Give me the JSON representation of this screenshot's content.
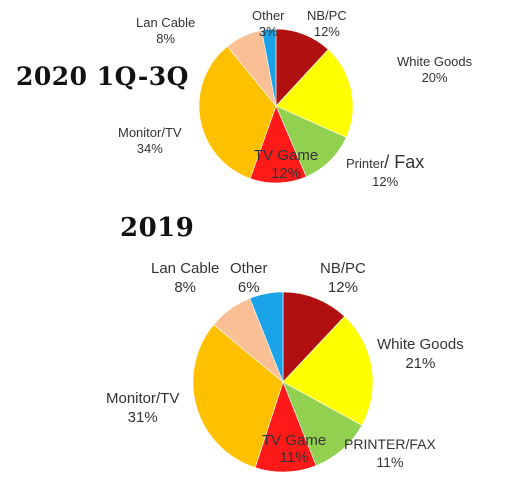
{
  "chart_data": [
    {
      "type": "pie",
      "title": "2020 1Q-3Q",
      "slices": [
        {
          "name": "NB/PC",
          "value": 12,
          "label": "12%",
          "color": "#b01010"
        },
        {
          "name": "White Goods",
          "value": 20,
          "label": "20%",
          "color": "#ffff00"
        },
        {
          "name": "Printer/Fax",
          "value": 12,
          "label": "12%",
          "color": "#92d050"
        },
        {
          "name": "TV Game",
          "value": 12,
          "label": "12%",
          "color": "#ff1a1a"
        },
        {
          "name": "Monitor/TV",
          "value": 34,
          "label": "34%",
          "color": "#ffc000"
        },
        {
          "name": "Lan Cable",
          "value": 8,
          "label": "8%",
          "color": "#fbbf95"
        },
        {
          "name": "Other",
          "value": 3,
          "label": "3%",
          "color": "#1aa3e8"
        }
      ]
    },
    {
      "type": "pie",
      "title": "2019",
      "slices": [
        {
          "name": "NB/PC",
          "value": 12,
          "label": "12%",
          "color": "#b01010"
        },
        {
          "name": "White Goods",
          "value": 21,
          "label": "21%",
          "color": "#ffff00"
        },
        {
          "name": "PRINTER/FAX",
          "value": 11,
          "label": "11%",
          "color": "#92d050"
        },
        {
          "name": "TV Game",
          "value": 11,
          "label": "11%",
          "color": "#ff1a1a"
        },
        {
          "name": "Monitor/TV",
          "value": 31,
          "label": "31%",
          "color": "#ffc000"
        },
        {
          "name": "Lan Cable",
          "value": 8,
          "label": "8%",
          "color": "#fbbf95"
        },
        {
          "name": "Other",
          "value": 6,
          "label": "6%",
          "color": "#1aa3e8"
        }
      ]
    }
  ],
  "labels": {
    "c1_nbpc_name": "NB/PC",
    "c1_nbpc_pct": "12%",
    "c1_white_name": "White Goods",
    "c1_white_pct": "20%",
    "c1_printer_name": "Printer",
    "c1_printer_slash": "/ Fax",
    "c1_printer_pct": "12%",
    "c1_tvgame_name": "TV Game",
    "c1_tvgame_pct": "12%",
    "c1_monitor_name": "Monitor/TV",
    "c1_monitor_pct": "34%",
    "c1_lan_name": "Lan Cable",
    "c1_lan_pct": "8%",
    "c1_other_name": "Other",
    "c1_other_pct": "3%",
    "c2_nbpc_name": "NB/PC",
    "c2_nbpc_pct": "12%",
    "c2_white_name": "White Goods",
    "c2_white_pct": "21%",
    "c2_printer_name": "PRINTER/FAX",
    "c2_printer_pct": "11%",
    "c2_tvgame_name": "TV Game",
    "c2_tvgame_pct": "11%",
    "c2_monitor_name": "Monitor/TV",
    "c2_monitor_pct": "31%",
    "c2_lan_name": "Lan Cable",
    "c2_lan_pct": "8%",
    "c2_other_name": "Other",
    "c2_other_pct": "6%"
  }
}
